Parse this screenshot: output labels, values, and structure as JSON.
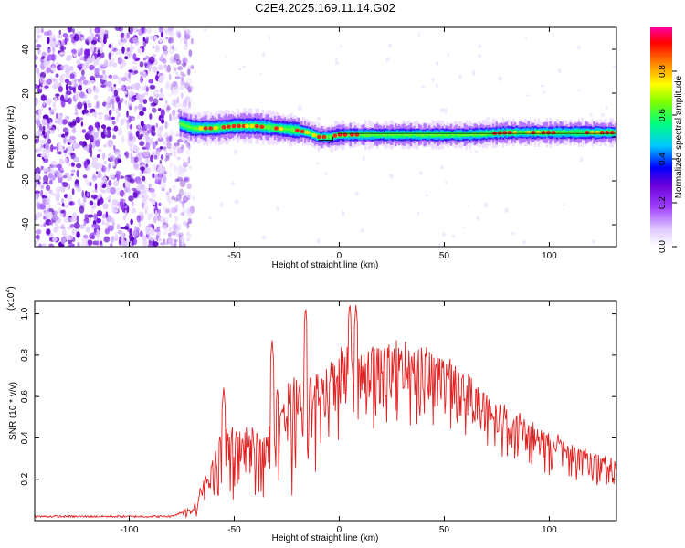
{
  "title": "C2E4.2025.169.11.14.G02",
  "chart_data": [
    {
      "type": "heatmap",
      "xlabel": "Height of straight line (km)",
      "ylabel": "Frequency (Hz)",
      "xlim": [
        -145,
        132
      ],
      "ylim": [
        -50,
        50
      ],
      "xticks": [
        -100,
        -50,
        0,
        50,
        100
      ],
      "yticks": [
        -40,
        -20,
        0,
        20,
        40
      ],
      "grid": false,
      "colorbar": {
        "label": "Normalized spectral amplitude",
        "range": [
          0,
          1
        ],
        "ticks": [
          "0.0",
          "0.2",
          "0.4",
          "0.6",
          "0.8"
        ],
        "colors": [
          "#ffffff",
          "#e0c8ff",
          "#a040ff",
          "#6a00d8",
          "#0000ff",
          "#00c8ff",
          "#00ff80",
          "#80ff00",
          "#ffff00",
          "#ff8000",
          "#ff0000",
          "#ff00a0"
        ]
      },
      "noise_region": {
        "x_start": -145,
        "x_end": -76
      },
      "signal_track": {
        "x": [
          -76,
          -70,
          -60,
          -50,
          -40,
          -30,
          -20,
          -15,
          -10,
          -5,
          0,
          10,
          20,
          40,
          60,
          80,
          100,
          120,
          132
        ],
        "y": [
          6,
          4,
          4,
          5,
          5,
          4,
          3,
          2,
          0,
          0,
          1,
          1,
          1,
          1,
          1,
          2,
          2,
          2,
          2
        ]
      }
    },
    {
      "type": "line",
      "xlabel": "Height of straight line (km)",
      "ylabel": "SNR (10 * v/v)",
      "y_multiplier": "(x10",
      "y_exponent": "4",
      "xlim": [
        -145,
        132
      ],
      "ylim": [
        0,
        1.06
      ],
      "xticks": [
        -100,
        -50,
        0,
        50,
        100
      ],
      "yticks": [
        "0.2",
        "0.4",
        "0.6",
        "0.8",
        "1.0"
      ],
      "color": "#e32020",
      "envelope": {
        "x": [
          -145,
          -80,
          -70,
          -60,
          -55,
          -50,
          -40,
          -35,
          -30,
          -20,
          -10,
          0,
          10,
          20,
          30,
          40,
          50,
          60,
          70,
          80,
          90,
          100,
          110,
          120,
          132
        ],
        "y": [
          0.02,
          0.02,
          0.06,
          0.3,
          0.5,
          0.45,
          0.45,
          0.4,
          0.65,
          0.7,
          0.7,
          0.85,
          0.82,
          0.86,
          0.86,
          0.85,
          0.8,
          0.72,
          0.62,
          0.55,
          0.48,
          0.42,
          0.38,
          0.33,
          0.28
        ]
      }
    }
  ]
}
